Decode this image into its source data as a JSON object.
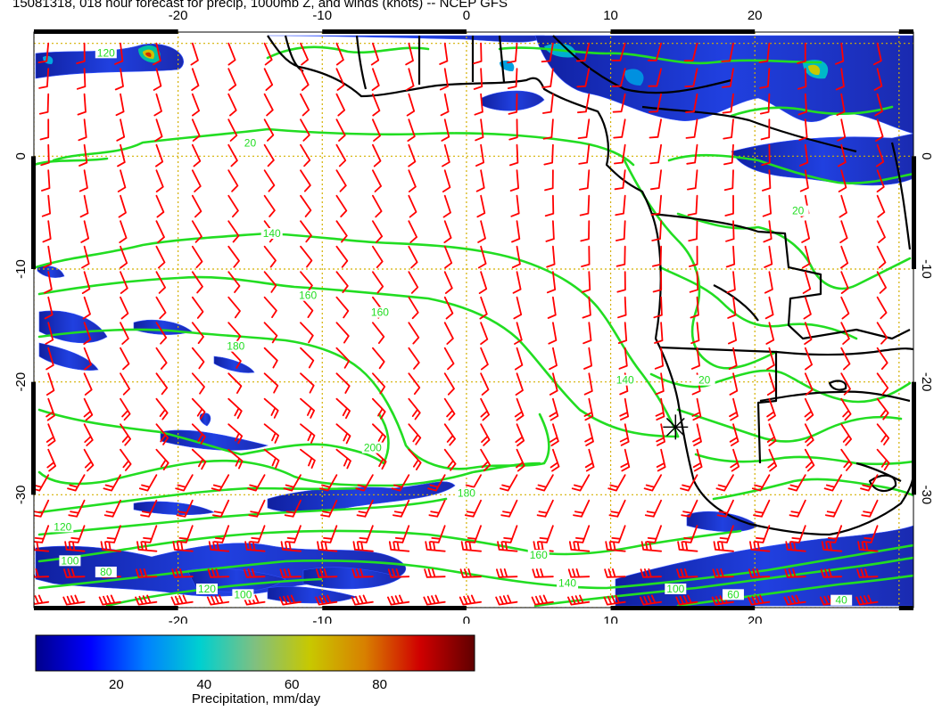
{
  "title": "15081318, 018 hour forecast for precip, 1000mb Z, and winds (knots) -- NCEP GFS",
  "map": {
    "lon_range": [
      -30,
      31
    ],
    "lat_range": [
      -40,
      11
    ],
    "x_ticks": [
      "-20",
      "-10",
      "0",
      "10",
      "20"
    ],
    "x_tick_values": [
      -20,
      -10,
      0,
      10,
      20
    ],
    "y_ticks": [
      "0",
      "-10",
      "-20",
      "-30"
    ],
    "y_tick_values": [
      0,
      -10,
      -20,
      -30
    ],
    "grid_color": "#d4b000",
    "contour_color": "#22dd22",
    "barb_color": "#ff0000",
    "coast_color": "#000000",
    "marker": {
      "lon": 14.5,
      "lat": -24,
      "symbol": "asterisk"
    },
    "contour_labels": [
      {
        "text": "120",
        "lon": -25,
        "lat": 9
      },
      {
        "text": "120",
        "lon": -28,
        "lat": -33
      },
      {
        "text": "120",
        "lon": -18,
        "lat": -38.5
      },
      {
        "text": "140",
        "lon": -13.5,
        "lat": -7
      },
      {
        "text": "160",
        "lon": -11,
        "lat": -12.5
      },
      {
        "text": "160",
        "lon": -6,
        "lat": -14
      },
      {
        "text": "180",
        "lon": -16,
        "lat": -17
      },
      {
        "text": "200",
        "lon": -6.5,
        "lat": -26
      },
      {
        "text": "180",
        "lon": 0,
        "lat": -30
      },
      {
        "text": "160",
        "lon": 5,
        "lat": -35.5
      },
      {
        "text": "140",
        "lon": 7,
        "lat": -38
      },
      {
        "text": "140",
        "lon": 11,
        "lat": -20
      },
      {
        "text": "100",
        "lon": -27.5,
        "lat": -36
      },
      {
        "text": "100",
        "lon": -15.5,
        "lat": -39
      },
      {
        "text": "100",
        "lon": 14.5,
        "lat": -38.5
      },
      {
        "text": "80",
        "lon": -25,
        "lat": -37
      },
      {
        "text": "60",
        "lon": 18.5,
        "lat": -39
      },
      {
        "text": "20",
        "lon": -15,
        "lat": 1
      },
      {
        "text": "20",
        "lon": 16.5,
        "lat": -20
      },
      {
        "text": "20",
        "lon": 23,
        "lat": -5
      },
      {
        "text": "40",
        "lon": 26,
        "lat": -39.5
      }
    ]
  },
  "colorbar": {
    "label": "Precipitation, mm/day",
    "ticks": [
      "20",
      "40",
      "60",
      "80"
    ],
    "tick_values": [
      20,
      40,
      60,
      80
    ],
    "range": [
      0,
      100
    ],
    "colors": [
      "#00008b",
      "#0000ff",
      "#0080ff",
      "#00d0d0",
      "#80c080",
      "#c8c800",
      "#d88000",
      "#d00000",
      "#600000"
    ]
  }
}
